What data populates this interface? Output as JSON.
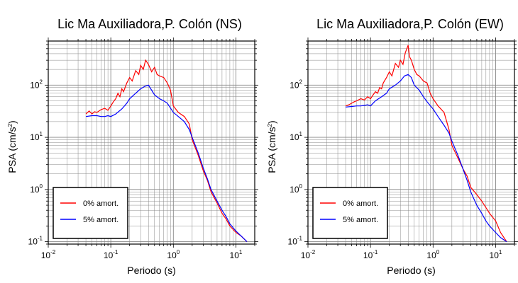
{
  "chart_data": [
    {
      "type": "line",
      "title": "Lic Ma Auxiliadora,P. Colón (NS)",
      "xlabel": "Periodo (s)",
      "ylabel": "PSA (cm/s²)",
      "xscale": "log",
      "yscale": "log",
      "xlim": [
        0.01,
        20
      ],
      "ylim": [
        0.09,
        700
      ],
      "grid": true,
      "legend_position": "bottom-left",
      "x_ticks": [
        "10",
        "10",
        "10",
        "10"
      ],
      "x_tick_exponents": [
        "-2",
        "-1",
        "0",
        "1"
      ],
      "y_ticks": [
        "10",
        "10",
        "10",
        "10"
      ],
      "y_tick_exponents": [
        "-1",
        "0",
        "1",
        "2"
      ],
      "series": [
        {
          "name": "0% amort.",
          "color": "#ff0000",
          "x": [
            0.04,
            0.045,
            0.05,
            0.055,
            0.06,
            0.07,
            0.08,
            0.09,
            0.1,
            0.11,
            0.12,
            0.13,
            0.14,
            0.15,
            0.16,
            0.18,
            0.2,
            0.22,
            0.25,
            0.28,
            0.3,
            0.33,
            0.36,
            0.4,
            0.45,
            0.5,
            0.55,
            0.6,
            0.7,
            0.8,
            0.9,
            1.0,
            1.2,
            1.5,
            1.8,
            2.0,
            2.5,
            3.0,
            3.5,
            4.0,
            5.0,
            6.0,
            7.0,
            8.0,
            10.0,
            12.0,
            15.0
          ],
          "y": [
            28,
            32,
            28,
            31,
            30,
            34,
            36,
            33,
            40,
            48,
            55,
            70,
            60,
            85,
            75,
            110,
            140,
            120,
            190,
            160,
            240,
            200,
            300,
            250,
            180,
            220,
            160,
            150,
            140,
            110,
            80,
            40,
            30,
            25,
            18,
            9,
            4.5,
            2.3,
            1.5,
            0.9,
            0.55,
            0.35,
            0.27,
            0.2,
            0.15,
            0.13,
            0.1
          ]
        },
        {
          "name": "5% amort.",
          "color": "#0000ff",
          "x": [
            0.04,
            0.05,
            0.06,
            0.07,
            0.08,
            0.09,
            0.1,
            0.12,
            0.15,
            0.18,
            0.2,
            0.25,
            0.3,
            0.35,
            0.4,
            0.45,
            0.5,
            0.6,
            0.7,
            0.8,
            1.0,
            1.2,
            1.5,
            1.8,
            2.0,
            2.5,
            3.0,
            3.5,
            4.0,
            5.0,
            6.0,
            7.0,
            8.0,
            10.0,
            12.0,
            15.0
          ],
          "y": [
            25,
            26,
            26,
            25,
            25,
            26,
            25,
            28,
            35,
            45,
            55,
            70,
            85,
            95,
            100,
            80,
            65,
            55,
            50,
            45,
            30,
            25,
            20,
            14,
            10,
            5,
            2.6,
            1.6,
            1.0,
            0.6,
            0.4,
            0.3,
            0.22,
            0.16,
            0.13,
            0.1
          ]
        }
      ]
    },
    {
      "type": "line",
      "title": "Lic Ma Auxiliadora,P. Colón (EW)",
      "xlabel": "Periodo (s)",
      "ylabel": "PSA (cm/s²)",
      "xscale": "log",
      "yscale": "log",
      "xlim": [
        0.01,
        20
      ],
      "ylim": [
        0.09,
        700
      ],
      "grid": true,
      "legend_position": "bottom-left",
      "x_ticks": [
        "10",
        "10",
        "10",
        "10"
      ],
      "x_tick_exponents": [
        "-2",
        "-1",
        "0",
        "1"
      ],
      "y_ticks": [
        "10",
        "10",
        "10",
        "10"
      ],
      "y_tick_exponents": [
        "-1",
        "0",
        "1",
        "2"
      ],
      "series": [
        {
          "name": "0% amort.",
          "color": "#ff0000",
          "x": [
            0.04,
            0.045,
            0.05,
            0.055,
            0.06,
            0.07,
            0.08,
            0.09,
            0.1,
            0.11,
            0.12,
            0.13,
            0.14,
            0.15,
            0.16,
            0.18,
            0.2,
            0.22,
            0.25,
            0.28,
            0.3,
            0.33,
            0.36,
            0.4,
            0.42,
            0.45,
            0.5,
            0.55,
            0.6,
            0.7,
            0.8,
            0.9,
            1.0,
            1.2,
            1.5,
            1.8,
            2.0,
            2.5,
            3.0,
            3.5,
            4.0,
            5.0,
            6.0,
            7.0,
            8.0,
            10.0,
            12.0,
            15.0
          ],
          "y": [
            40,
            42,
            45,
            48,
            50,
            55,
            52,
            60,
            55,
            65,
            75,
            70,
            90,
            85,
            110,
            140,
            180,
            150,
            260,
            220,
            300,
            250,
            420,
            580,
            350,
            300,
            200,
            160,
            150,
            120,
            110,
            70,
            55,
            40,
            30,
            14,
            7,
            4,
            2.5,
            1.8,
            1.1,
            0.8,
            0.6,
            0.45,
            0.35,
            0.25,
            0.15,
            0.1
          ]
        },
        {
          "name": "5% amort.",
          "color": "#0000ff",
          "x": [
            0.04,
            0.05,
            0.06,
            0.07,
            0.08,
            0.09,
            0.1,
            0.12,
            0.15,
            0.18,
            0.2,
            0.25,
            0.3,
            0.35,
            0.4,
            0.45,
            0.5,
            0.6,
            0.7,
            0.8,
            1.0,
            1.2,
            1.5,
            1.8,
            2.0,
            2.5,
            3.0,
            3.5,
            4.0,
            5.0,
            6.0,
            7.0,
            8.0,
            10.0,
            12.0,
            15.0
          ],
          "y": [
            38,
            39,
            40,
            40,
            41,
            42,
            40,
            50,
            60,
            70,
            85,
            100,
            120,
            150,
            160,
            140,
            100,
            80,
            60,
            48,
            35,
            25,
            17,
            12,
            8.5,
            4.5,
            2.5,
            1.5,
            0.9,
            0.5,
            0.35,
            0.25,
            0.2,
            0.15,
            0.12,
            0.1
          ]
        }
      ]
    }
  ]
}
